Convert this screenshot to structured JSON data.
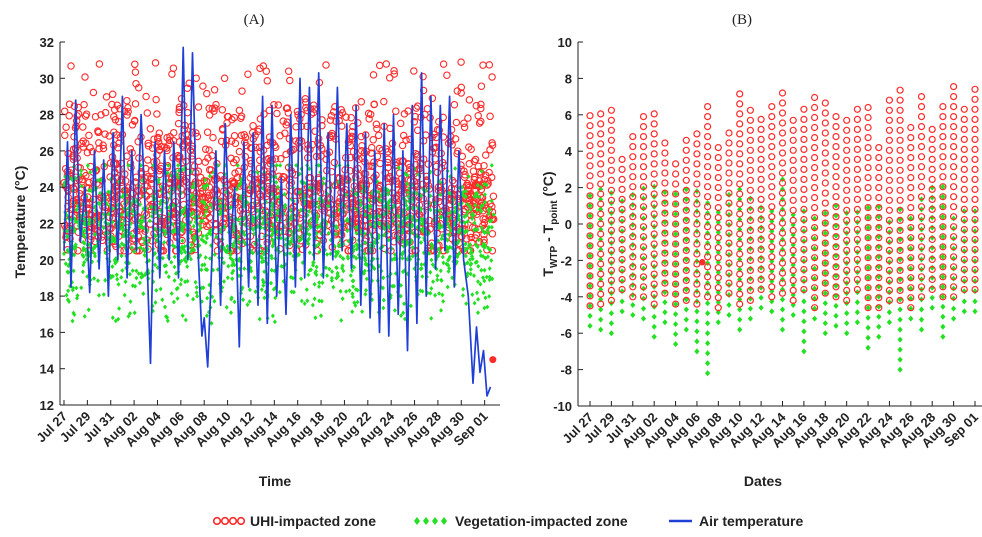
{
  "figure": {
    "legend": [
      {
        "name": "UHI-impacted zone",
        "color": "#ff2a2a",
        "marker": "open-circle"
      },
      {
        "name": "Vegetation-impacted zone",
        "color": "#22e022",
        "marker": "filled-diamond"
      },
      {
        "name": "Air temperature",
        "color": "#1f3fd6",
        "marker": "line"
      }
    ]
  },
  "chart_data": [
    {
      "panel_label": "(A)",
      "type": "scatter",
      "xlabel": "Time",
      "ylabel": "Temperature (°C)",
      "ylim": [
        12,
        32
      ],
      "yticks": [
        12,
        14,
        16,
        18,
        20,
        22,
        24,
        26,
        28,
        30,
        32
      ],
      "xlim": [
        "2023-07-27",
        "2023-09-02"
      ],
      "xtick_labels": [
        "Jul 27",
        "Jul 29",
        "Jul 31",
        "Aug 02",
        "Aug 04",
        "Aug 06",
        "Aug 08",
        "Aug 10",
        "Aug 12",
        "Aug 14",
        "Aug 16",
        "Aug 18",
        "Aug 20",
        "Aug 22",
        "Aug 24",
        "Aug 26",
        "Aug 28",
        "Aug 30",
        "Sep 01"
      ],
      "grid": false,
      "series": [
        {
          "name": "UHI-impacted zone",
          "kind": "scatter-band",
          "typical_range": [
            20.5,
            27.5
          ],
          "max": 31.0,
          "color": "#ff2a2a"
        },
        {
          "name": "Vegetation-impacted zone",
          "kind": "scatter-band",
          "typical_range": [
            18.0,
            25.0
          ],
          "min": 16.5,
          "color": "#22e022"
        },
        {
          "name": "Air temperature",
          "kind": "line",
          "color": "#1f3fd6",
          "x_day": [
            0,
            0.3,
            0.6,
            1.0,
            1.4,
            1.8,
            2.2,
            2.6,
            3.0,
            3.4,
            3.8,
            4.2,
            4.6,
            5.0,
            5.4,
            5.8,
            6.2,
            6.6,
            7.0,
            7.4,
            7.8,
            8.2,
            8.6,
            9.0,
            9.4,
            9.8,
            10.2,
            10.6,
            11.0,
            11.4,
            11.8,
            12.0,
            12.3,
            12.6,
            13.0,
            13.4,
            13.8,
            14.2,
            14.6,
            15.0,
            15.4,
            15.8,
            16.2,
            16.6,
            17.0,
            17.4,
            17.8,
            18.2,
            18.6,
            19.0,
            19.4,
            19.8,
            20.2,
            20.6,
            21.0,
            21.4,
            21.8,
            22.2,
            22.6,
            23.0,
            23.4,
            23.8,
            24.2,
            24.6,
            25.0,
            25.4,
            25.8,
            26.2,
            26.6,
            27.0,
            27.4,
            27.8,
            28.2,
            28.6,
            29.0,
            29.4,
            29.8,
            30.2,
            30.6,
            31.0,
            31.4,
            31.8,
            32.2,
            32.6,
            33.0,
            33.4,
            33.8,
            34.2,
            34.6,
            35.0,
            35.3,
            35.6,
            35.9,
            36.2,
            36.5
          ],
          "y": [
            20.5,
            26.5,
            18.5,
            28.8,
            21.0,
            24.0,
            18.2,
            26.0,
            19.5,
            25.5,
            18.0,
            27.0,
            20.0,
            29.0,
            19.0,
            26.0,
            20.5,
            28.0,
            22.0,
            14.3,
            26.5,
            19.0,
            26.0,
            20.0,
            26.5,
            19.0,
            31.7,
            20.0,
            31.4,
            21.5,
            15.8,
            16.8,
            14.1,
            19.0,
            26.0,
            17.5,
            27.5,
            20.5,
            24.0,
            15.2,
            26.5,
            18.5,
            27.0,
            17.5,
            29.0,
            16.5,
            28.5,
            18.0,
            24.5,
            17.0,
            28.0,
            18.5,
            30.0,
            19.0,
            29.5,
            20.0,
            30.3,
            19.0,
            27.0,
            20.0,
            29.5,
            20.5,
            27.5,
            19.5,
            28.5,
            17.5,
            27.0,
            16.8,
            26.0,
            16.0,
            27.5,
            15.8,
            28.0,
            17.0,
            26.0,
            15.0,
            28.5,
            16.5,
            30.3,
            18.0,
            29.0,
            19.5,
            28.5,
            20.5,
            29.0,
            18.5,
            26.0,
            20.0,
            18.0,
            13.2,
            16.3,
            13.8,
            15.0,
            12.5,
            13.0
          ]
        }
      ],
      "outlier_point": {
        "x_day": 36.7,
        "y": 14.5
      }
    },
    {
      "panel_label": "(B)",
      "type": "scatter",
      "xlabel": "Dates",
      "ylabel_main": "T",
      "ylabel_sub1": "WTP",
      "ylabel_mid": " - T",
      "ylabel_sub2": "point",
      "ylabel_unit": " (°C)",
      "ylim": [
        -10,
        10
      ],
      "yticks": [
        -10,
        -8,
        -6,
        -4,
        -2,
        0,
        2,
        4,
        6,
        8,
        10
      ],
      "xtick_labels": [
        "Jul 27",
        "Jul 29",
        "Jul 31",
        "Aug 02",
        "Aug 04",
        "Aug 06",
        "Aug 08",
        "Aug 10",
        "Aug 12",
        "Aug 14",
        "Aug 16",
        "Aug 18",
        "Aug 20",
        "Aug 22",
        "Aug 24",
        "Aug 26",
        "Aug 28",
        "Aug 30",
        "Sep 01"
      ],
      "grid": false,
      "day_columns": {
        "red_top": [
          6.2,
          6.5,
          6.6,
          3.8,
          4.8,
          6.2,
          6.2,
          4.6,
          3.8,
          4.6,
          5.0,
          6.6,
          4.4,
          5.4,
          7.4,
          6.6,
          6.2,
          6.6,
          7.5,
          5.8,
          6.7,
          7.0,
          6.7,
          6.0,
          5.7,
          6.8,
          6.4,
          4.6,
          7.0,
          7.6,
          5.4,
          7.0,
          5.4,
          6.6,
          8.0,
          6.8,
          7.8
        ],
        "red_bottom": [
          -4.5,
          -4.4,
          -4.2,
          -3.6,
          -4.0,
          -4.0,
          -4.4,
          -3.8,
          -4.4,
          -4.2,
          -4.4,
          -4.0,
          -4.6,
          -3.8,
          -4.4,
          -4.2,
          -3.6,
          -4.0,
          -3.8,
          -4.2,
          -3.6,
          -4.6,
          -3.8,
          -4.0,
          -4.2,
          -3.6,
          -4.6,
          -4.6,
          -4.2,
          -4.2,
          -4.6,
          -4.0,
          -3.6,
          -4.0,
          -4.0,
          -3.6,
          -3.6
        ],
        "green_top": [
          2.0,
          2.2,
          1.8,
          1.6,
          2.0,
          2.0,
          2.2,
          2.0,
          2.0,
          2.2,
          1.8,
          1.6,
          1.0,
          1.6,
          2.0,
          1.4,
          1.2,
          1.2,
          2.6,
          0.8,
          1.0,
          0.8,
          1.0,
          1.2,
          0.8,
          1.0,
          1.0,
          1.0,
          0.6,
          0.8,
          0.8,
          1.4,
          2.2,
          2.2,
          0.8,
          0.8,
          0.8
        ],
        "green_bottom": [
          -5.6,
          -5.8,
          -6.0,
          -4.8,
          -5.0,
          -5.2,
          -6.2,
          -5.4,
          -6.6,
          -5.8,
          -7.0,
          -8.2,
          -5.4,
          -5.0,
          -5.8,
          -5.2,
          -4.6,
          -4.8,
          -5.8,
          -5.0,
          -7.0,
          -5.2,
          -6.0,
          -5.6,
          -6.0,
          -5.4,
          -6.8,
          -6.2,
          -5.4,
          -8.0,
          -5.2,
          -5.8,
          -4.6,
          -6.2,
          -5.2,
          -4.8,
          -4.8
        ]
      },
      "outlier_point": {
        "day": 10.5,
        "y": -2.1
      }
    }
  ]
}
